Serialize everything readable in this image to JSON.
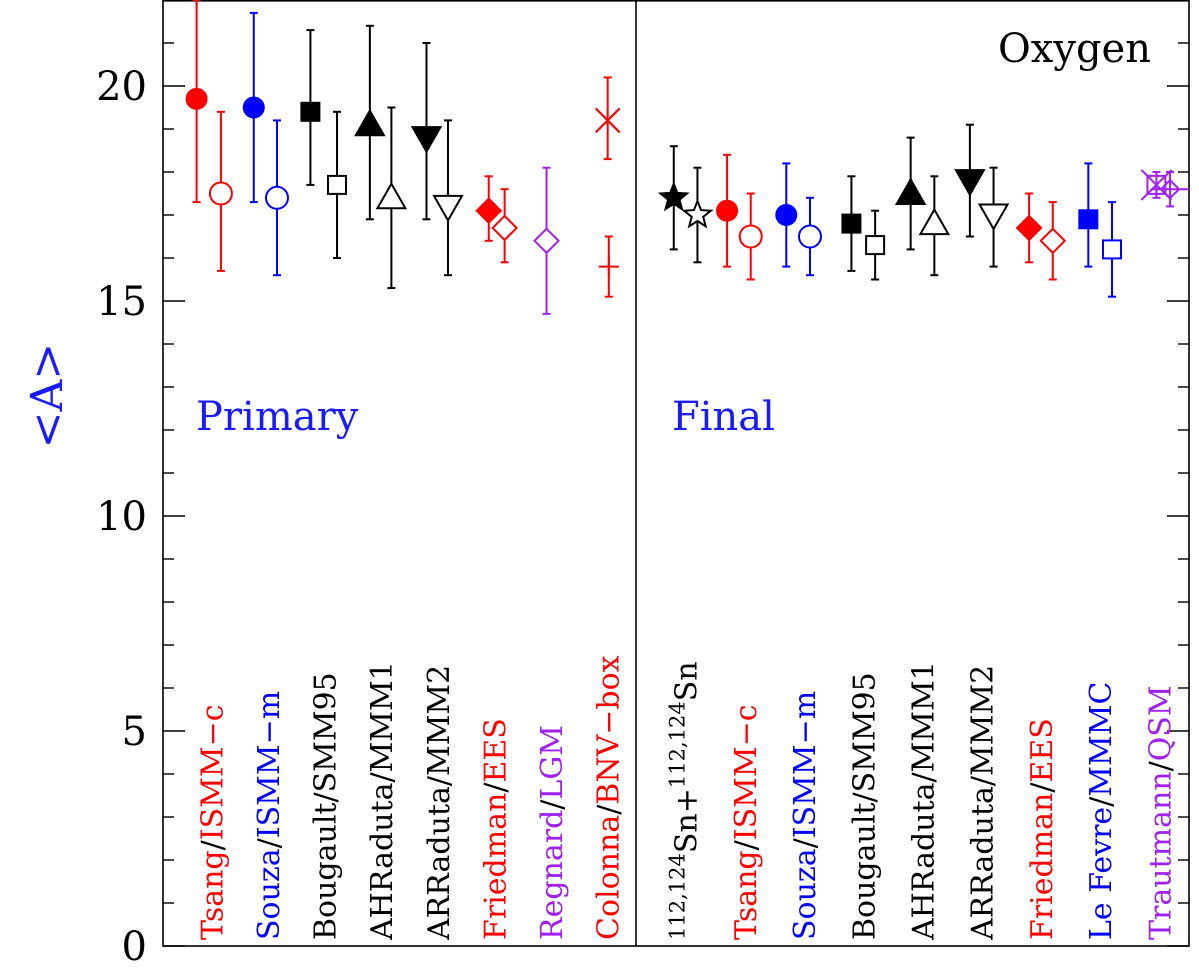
{
  "chart_data": {
    "type": "scatter",
    "title": "",
    "xlabel": "",
    "ylabel": "<A>",
    "ylim": [
      0,
      22
    ],
    "yticks": [
      0,
      5,
      10,
      15,
      20
    ],
    "yticks_labels": [
      "0",
      "5",
      "10",
      "15",
      "20"
    ],
    "grid": false,
    "panels": [
      {
        "name": "Primary",
        "name_color": "#1a1aff",
        "labels": [
          {
            "parts": [
              {
                "text": "Tsang",
                "color": "#ff0000"
              },
              {
                "text": "/",
                "color": "#000000"
              },
              {
                "text": "ISMM−c",
                "color": "#ff0000"
              }
            ]
          },
          {
            "parts": [
              {
                "text": "Souza",
                "color": "#0000ff"
              },
              {
                "text": "/",
                "color": "#000000"
              },
              {
                "text": "ISMM−m",
                "color": "#0000ff"
              }
            ]
          },
          {
            "parts": [
              {
                "text": "Bougault",
                "color": "#000000"
              },
              {
                "text": "/",
                "color": "#000000"
              },
              {
                "text": "SMM95",
                "color": "#000000"
              }
            ]
          },
          {
            "parts": [
              {
                "text": "AHRaduta",
                "color": "#000000"
              },
              {
                "text": "/",
                "color": "#000000"
              },
              {
                "text": "MMM1",
                "color": "#000000"
              }
            ]
          },
          {
            "parts": [
              {
                "text": "ARRaduta",
                "color": "#000000"
              },
              {
                "text": "/",
                "color": "#000000"
              },
              {
                "text": "MMM2",
                "color": "#000000"
              }
            ]
          },
          {
            "parts": [
              {
                "text": "Friedman",
                "color": "#ff0000"
              },
              {
                "text": "/",
                "color": "#000000"
              },
              {
                "text": "EES",
                "color": "#ff0000"
              }
            ]
          },
          {
            "parts": [
              {
                "text": "Regnard",
                "color": "#a020f0"
              },
              {
                "text": "/",
                "color": "#000000"
              },
              {
                "text": "LGM",
                "color": "#a020f0"
              }
            ]
          },
          {
            "parts": [
              {
                "text": "Colonna",
                "color": "#ff0000"
              },
              {
                "text": "/",
                "color": "#000000"
              },
              {
                "text": "BNV−box",
                "color": "#ff0000"
              }
            ]
          }
        ],
        "points": [
          {
            "group": 0,
            "offset": -0.26,
            "marker": "circle",
            "filled": true,
            "color": "#ff0000",
            "y": 19.7,
            "err_hi": 22.0,
            "err_lo": 17.3
          },
          {
            "group": 0,
            "offset": 0.17,
            "marker": "circle",
            "filled": false,
            "color": "#ff0000",
            "y": 17.5,
            "err_hi": 19.4,
            "err_lo": 15.7
          },
          {
            "group": 1,
            "offset": -0.25,
            "marker": "circle",
            "filled": true,
            "color": "#0000ff",
            "y": 19.5,
            "err_hi": 21.7,
            "err_lo": 17.3
          },
          {
            "group": 1,
            "offset": 0.16,
            "marker": "circle",
            "filled": false,
            "color": "#0000ff",
            "y": 17.4,
            "err_hi": 19.2,
            "err_lo": 15.6
          },
          {
            "group": 2,
            "offset": -0.25,
            "marker": "square",
            "filled": true,
            "color": "#000000",
            "y": 19.4,
            "err_hi": 21.3,
            "err_lo": 17.7
          },
          {
            "group": 2,
            "offset": 0.22,
            "marker": "square",
            "filled": false,
            "color": "#000000",
            "y": 17.7,
            "err_hi": 19.4,
            "err_lo": 16.0
          },
          {
            "group": 3,
            "offset": -0.2,
            "marker": "triangle-up",
            "filled": true,
            "color": "#000000",
            "y": 19.1,
            "err_hi": 21.4,
            "err_lo": 16.9
          },
          {
            "group": 3,
            "offset": 0.18,
            "marker": "triangle-up",
            "filled": false,
            "color": "#000000",
            "y": 17.4,
            "err_hi": 19.5,
            "err_lo": 15.3
          },
          {
            "group": 4,
            "offset": -0.2,
            "marker": "triangle-down",
            "filled": true,
            "color": "#000000",
            "y": 18.8,
            "err_hi": 21.0,
            "err_lo": 16.9
          },
          {
            "group": 4,
            "offset": 0.18,
            "marker": "triangle-down",
            "filled": false,
            "color": "#000000",
            "y": 17.2,
            "err_hi": 19.2,
            "err_lo": 15.6
          },
          {
            "group": 5,
            "offset": -0.1,
            "marker": "diamond",
            "filled": true,
            "color": "#ff0000",
            "y": 17.1,
            "err_hi": 17.9,
            "err_lo": 16.4
          },
          {
            "group": 5,
            "offset": 0.18,
            "marker": "diamond",
            "filled": false,
            "color": "#ff0000",
            "y": 16.7,
            "err_hi": 17.6,
            "err_lo": 15.9
          },
          {
            "group": 6,
            "offset": -0.08,
            "marker": "diamond",
            "filled": false,
            "color": "#a020f0",
            "y": 16.4,
            "err_hi": 18.1,
            "err_lo": 14.7
          },
          {
            "group": 7,
            "offset": 0.0,
            "marker": "cross",
            "filled": false,
            "color": "#ff0000",
            "y": 19.2,
            "err_hi": 20.2,
            "err_lo": 18.3
          },
          {
            "group": 7,
            "offset": 0.02,
            "marker": "plus",
            "filled": false,
            "color": "#ff0000",
            "y": 15.8,
            "err_hi": 16.5,
            "err_lo": 15.1
          }
        ]
      },
      {
        "name": "Final",
        "name_color": "#1a1aff",
        "labels": [
          {
            "parts": [
              {
                "sup": "112,124",
                "text": "Sn+",
                "color": "#000000"
              },
              {
                "sup": "112,124",
                "text": "Sn",
                "color": "#000000"
              }
            ]
          },
          {
            "parts": [
              {
                "text": "Tsang",
                "color": "#ff0000"
              },
              {
                "text": "/",
                "color": "#000000"
              },
              {
                "text": "ISMM−c",
                "color": "#ff0000"
              }
            ]
          },
          {
            "parts": [
              {
                "text": "Souza",
                "color": "#0000ff"
              },
              {
                "text": "/",
                "color": "#000000"
              },
              {
                "text": "ISMM−m",
                "color": "#0000ff"
              }
            ]
          },
          {
            "parts": [
              {
                "text": "Bougault",
                "color": "#000000"
              },
              {
                "text": "/",
                "color": "#000000"
              },
              {
                "text": "SMM95",
                "color": "#000000"
              }
            ]
          },
          {
            "parts": [
              {
                "text": "AHRaduta",
                "color": "#000000"
              },
              {
                "text": "/",
                "color": "#000000"
              },
              {
                "text": "MMM1",
                "color": "#000000"
              }
            ]
          },
          {
            "parts": [
              {
                "text": "ARRaduta",
                "color": "#000000"
              },
              {
                "text": "/",
                "color": "#000000"
              },
              {
                "text": "MMM2",
                "color": "#000000"
              }
            ]
          },
          {
            "parts": [
              {
                "text": "Friedman",
                "color": "#ff0000"
              },
              {
                "text": "/",
                "color": "#000000"
              },
              {
                "text": "EES",
                "color": "#ff0000"
              }
            ]
          },
          {
            "parts": [
              {
                "text": "Le Fevre",
                "color": "#0000ff"
              },
              {
                "text": "/",
                "color": "#000000"
              },
              {
                "text": "MMMC",
                "color": "#0000ff"
              }
            ]
          },
          {
            "parts": [
              {
                "text": "Trautmann",
                "color": "#a020f0"
              },
              {
                "text": "/",
                "color": "#000000"
              },
              {
                "text": "QSM",
                "color": "#a020f0"
              }
            ]
          }
        ],
        "points": [
          {
            "group": 0,
            "offset": -0.2,
            "marker": "star",
            "filled": true,
            "color": "#000000",
            "y": 17.4,
            "err_hi": 18.6,
            "err_lo": 16.2
          },
          {
            "group": 0,
            "offset": 0.2,
            "marker": "star",
            "filled": false,
            "color": "#000000",
            "y": 17.0,
            "err_hi": 18.1,
            "err_lo": 15.9
          },
          {
            "group": 1,
            "offset": -0.3,
            "marker": "circle",
            "filled": true,
            "color": "#ff0000",
            "y": 17.1,
            "err_hi": 18.4,
            "err_lo": 15.8
          },
          {
            "group": 1,
            "offset": 0.1,
            "marker": "circle",
            "filled": false,
            "color": "#ff0000",
            "y": 16.5,
            "err_hi": 17.5,
            "err_lo": 15.5
          },
          {
            "group": 2,
            "offset": -0.3,
            "marker": "circle",
            "filled": true,
            "color": "#0000ff",
            "y": 17.0,
            "err_hi": 18.2,
            "err_lo": 15.8
          },
          {
            "group": 2,
            "offset": 0.1,
            "marker": "circle",
            "filled": false,
            "color": "#0000ff",
            "y": 16.5,
            "err_hi": 17.4,
            "err_lo": 15.6
          },
          {
            "group": 3,
            "offset": -0.2,
            "marker": "square",
            "filled": true,
            "color": "#000000",
            "y": 16.8,
            "err_hi": 17.9,
            "err_lo": 15.7
          },
          {
            "group": 3,
            "offset": 0.2,
            "marker": "square",
            "filled": false,
            "color": "#000000",
            "y": 16.3,
            "err_hi": 17.1,
            "err_lo": 15.5
          },
          {
            "group": 4,
            "offset": -0.2,
            "marker": "triangle-up",
            "filled": true,
            "color": "#000000",
            "y": 17.5,
            "err_hi": 18.8,
            "err_lo": 16.2
          },
          {
            "group": 4,
            "offset": 0.2,
            "marker": "triangle-up",
            "filled": false,
            "color": "#000000",
            "y": 16.8,
            "err_hi": 17.9,
            "err_lo": 15.6
          },
          {
            "group": 5,
            "offset": -0.2,
            "marker": "triangle-down",
            "filled": true,
            "color": "#000000",
            "y": 17.8,
            "err_hi": 19.1,
            "err_lo": 16.5
          },
          {
            "group": 5,
            "offset": 0.2,
            "marker": "triangle-down",
            "filled": false,
            "color": "#000000",
            "y": 17.0,
            "err_hi": 18.1,
            "err_lo": 15.8
          },
          {
            "group": 6,
            "offset": -0.2,
            "marker": "diamond",
            "filled": true,
            "color": "#ff0000",
            "y": 16.7,
            "err_hi": 17.5,
            "err_lo": 15.9
          },
          {
            "group": 6,
            "offset": 0.2,
            "marker": "diamond",
            "filled": false,
            "color": "#ff0000",
            "y": 16.4,
            "err_hi": 17.3,
            "err_lo": 15.5
          },
          {
            "group": 7,
            "offset": -0.2,
            "marker": "square",
            "filled": true,
            "color": "#0000ff",
            "y": 16.9,
            "err_hi": 18.2,
            "err_lo": 15.8
          },
          {
            "group": 7,
            "offset": 0.2,
            "marker": "square",
            "filled": false,
            "color": "#0000ff",
            "y": 16.2,
            "err_hi": 17.3,
            "err_lo": 15.1
          },
          {
            "group": 8,
            "offset": -0.05,
            "marker": "square-cross",
            "filled": false,
            "color": "#a020f0",
            "y": 17.7,
            "err_hi": 18.0,
            "err_lo": 17.4
          },
          {
            "group": 8,
            "offset": 0.18,
            "marker": "diamond-plus",
            "filled": false,
            "color": "#a020f0",
            "y": 17.6,
            "err_hi": 18.0,
            "err_lo": 17.2
          }
        ]
      }
    ],
    "annotations": [
      {
        "text": "Oxygen",
        "color": "#000000",
        "position": "top-right"
      }
    ]
  }
}
